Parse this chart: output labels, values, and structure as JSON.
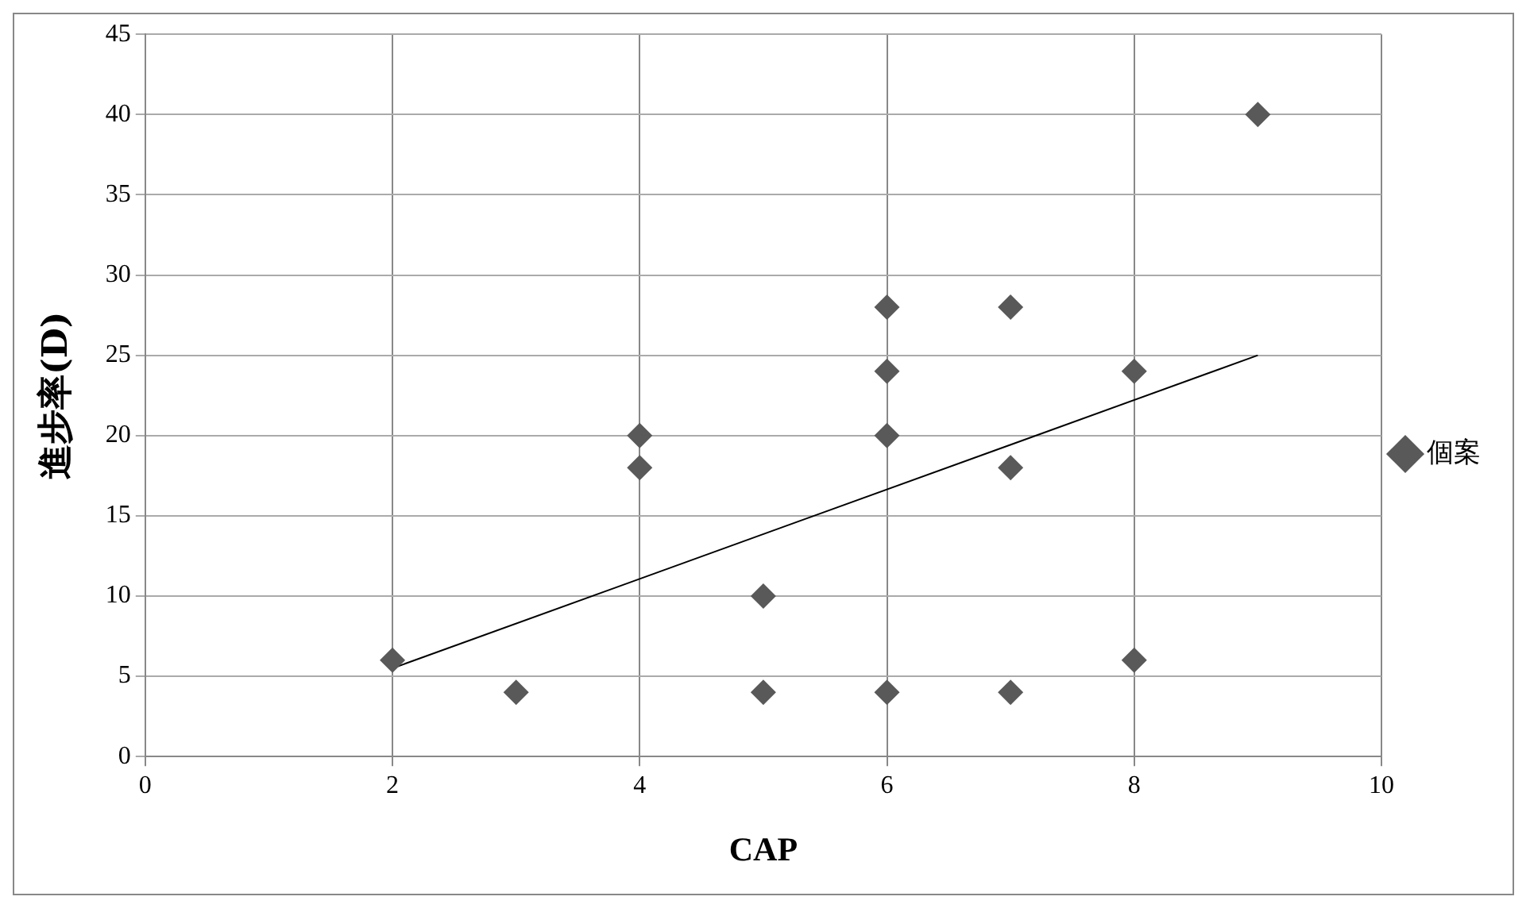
{
  "chart_data": {
    "type": "scatter",
    "xlabel": "CAP",
    "ylabel": "進步率(D)",
    "xlim": [
      0,
      10
    ],
    "xticks": [
      0,
      2,
      4,
      6,
      8,
      10
    ],
    "ylim": [
      0,
      45
    ],
    "yticks": [
      0,
      5,
      10,
      15,
      20,
      25,
      30,
      35,
      40,
      45
    ],
    "grid": true,
    "legend": "right",
    "marker": "diamond",
    "series": [
      {
        "name": "個案",
        "color": "#595959",
        "x": [
          2,
          3,
          4,
          4,
          5,
          5,
          6,
          6,
          6,
          6,
          7,
          7,
          7,
          8,
          8,
          9
        ],
        "values": [
          6,
          4,
          20,
          18,
          10,
          4,
          28,
          24,
          20,
          4,
          28,
          18,
          4,
          24,
          6,
          40
        ]
      },
      {
        "type": "line",
        "color": "#000000",
        "marker": "none",
        "x": [
          2,
          9
        ],
        "values": [
          5.5,
          25
        ]
      }
    ]
  }
}
